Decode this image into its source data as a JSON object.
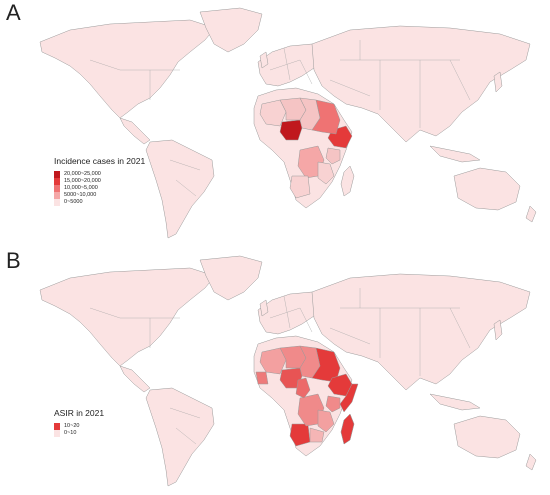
{
  "panels": [
    {
      "letter": "A",
      "legend": {
        "title": "Incidence cases in 2021",
        "items": [
          {
            "label": "20,000~25,000",
            "color": "#c0181d"
          },
          {
            "label": "15,000~20,000",
            "color": "#e43a3a"
          },
          {
            "label": "10,000~5,000",
            "color": "#ef7373"
          },
          {
            "label": "5000~10,000",
            "color": "#f5a7a7"
          },
          {
            "label": "0~5000",
            "color": "#fbe3e3"
          }
        ]
      },
      "base_color": "#fbe3e3",
      "highlights": [
        {
          "region": "Nigeria",
          "color": "#c0181d"
        },
        {
          "region": "Ethiopia",
          "color": "#e43a3a"
        },
        {
          "region": "Sudan",
          "color": "#ef7373"
        },
        {
          "region": "DR Congo",
          "color": "#f5a7a7"
        },
        {
          "region": "Niger",
          "color": "#f5c4c4"
        },
        {
          "region": "Chad",
          "color": "#f5c4c4"
        },
        {
          "region": "Mali",
          "color": "#f8d2d2"
        },
        {
          "region": "Angola",
          "color": "#f8d2d2"
        },
        {
          "region": "Tanzania",
          "color": "#f8d2d2"
        },
        {
          "region": "Kenya",
          "color": "#f5c4c4"
        }
      ]
    },
    {
      "letter": "B",
      "legend": {
        "title": "ASIR in 2021",
        "items": [
          {
            "label": "10~20",
            "color": "#e43a3a"
          },
          {
            "label": "0~10",
            "color": "#fbe3e3"
          }
        ]
      },
      "base_color": "#fbe3e3",
      "highlights": [
        {
          "region": "Sudan",
          "color": "#e43a3a"
        },
        {
          "region": "Ethiopia",
          "color": "#e43a3a"
        },
        {
          "region": "Somalia",
          "color": "#e43a3a"
        },
        {
          "region": "Nigeria",
          "color": "#e85454"
        },
        {
          "region": "Angola",
          "color": "#e43a3a"
        },
        {
          "region": "Madagascar",
          "color": "#e43a3a"
        },
        {
          "region": "DR Congo",
          "color": "#f08a8a"
        },
        {
          "region": "Niger",
          "color": "#f08a8a"
        },
        {
          "region": "Chad",
          "color": "#f08a8a"
        },
        {
          "region": "Mali",
          "color": "#f3a0a0"
        },
        {
          "region": "Guinea",
          "color": "#ee7a7a"
        },
        {
          "region": "Cameroon",
          "color": "#ec6a6a"
        },
        {
          "region": "Tanzania",
          "color": "#f3a0a0"
        },
        {
          "region": "Kenya",
          "color": "#f08a8a"
        },
        {
          "region": "Zambia",
          "color": "#f5b5b5"
        }
      ]
    }
  ]
}
